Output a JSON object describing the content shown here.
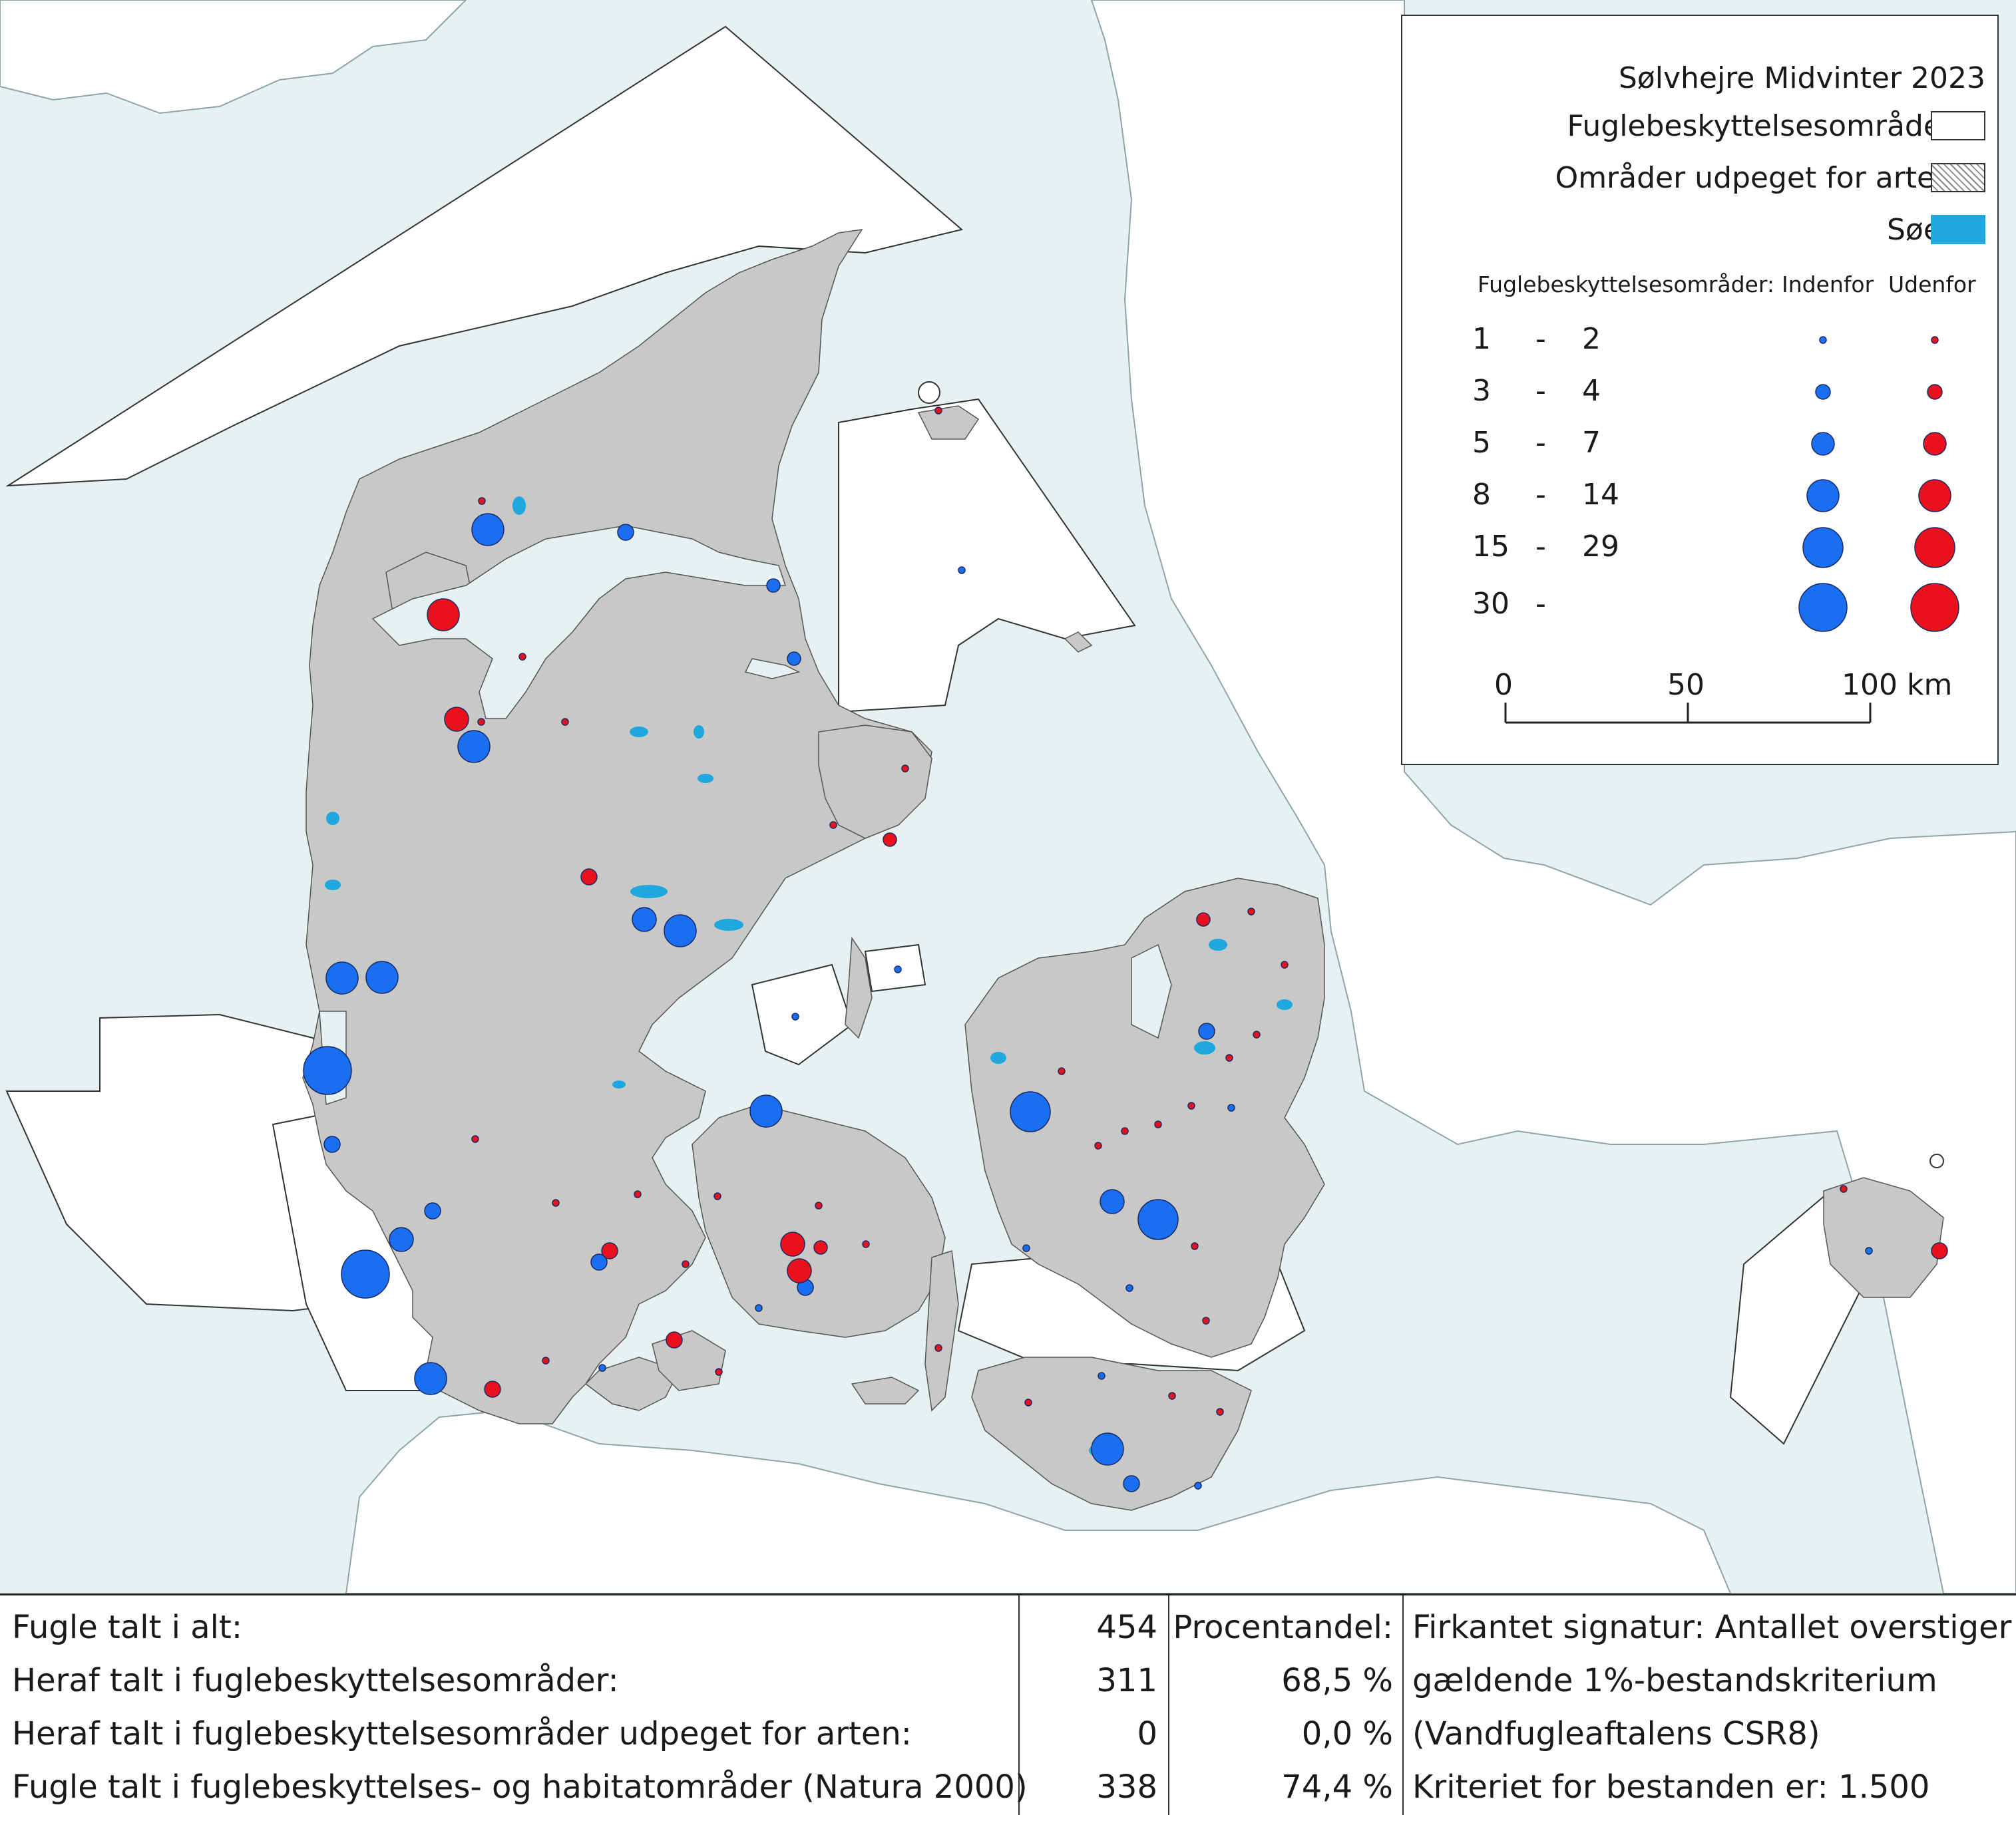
{
  "legend": {
    "title": "Sølvhejre Midvinter 2023",
    "bird_areas": "Fuglebeskyttelsesområder",
    "designated": "Områder udpeget for arten",
    "lakes": "Søer",
    "columns_label": "Fuglebeskyttelsesområder:",
    "inside": "Indenfor",
    "outside": "Udenfor",
    "classes": [
      {
        "min": "1",
        "max": "2"
      },
      {
        "min": "3",
        "max": "4"
      },
      {
        "min": "5",
        "max": "7"
      },
      {
        "min": "8",
        "max": "14"
      },
      {
        "min": "15",
        "max": "29"
      },
      {
        "min": "30",
        "max": ""
      }
    ],
    "dash": "-",
    "colors": {
      "inside": "#1a6ef0",
      "outside": "#e8111c",
      "lakes": "#1fa8e0",
      "land": "#c8c9c6",
      "sea": "#e6f2f2"
    },
    "scale": {
      "zero": "0",
      "mid": "50",
      "end": "100 km"
    }
  },
  "stats": {
    "rows": [
      {
        "label": "Fugle talt i alt:",
        "count": "454",
        "percent": "Procentandel:"
      },
      {
        "label": "Heraf talt i fuglebeskyttelsesområder:",
        "count": "311",
        "percent": "68,5 %"
      },
      {
        "label": "Heraf talt i fuglebeskyttelsesområder udpeget for arten:",
        "count": "0",
        "percent": "0,0 %"
      },
      {
        "label": "Fugle talt i fuglebeskyttelses- og habitatområder (Natura 2000)",
        "count": "338",
        "percent": "74,4 %"
      }
    ],
    "note": [
      "Firkantet signatur: Antallet overstiger",
      "gældende 1%-bestandskriterium",
      "(Vandfugleaftalens CSR8)",
      "Kriteriet for bestanden er: 1.500"
    ]
  }
}
